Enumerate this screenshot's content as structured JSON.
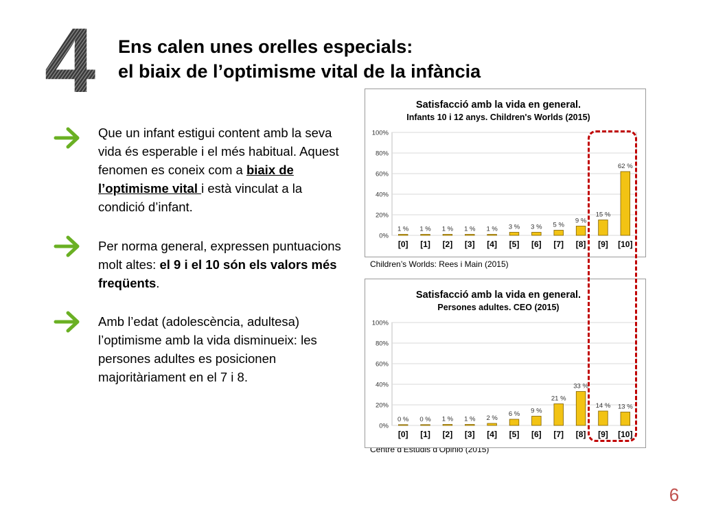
{
  "slide": {
    "number_glyph": "4",
    "title_line1": "Ens calen unes orelles especials:",
    "title_line2": "el biaix de l’optimisme vital de la infància",
    "page_number": "6"
  },
  "bullets": [
    {
      "text_a": "Que un infant estigui content amb la seva vida és esperable i el més habitual. Aquest fenomen es coneix com a ",
      "text_u": "biaix de l’optimisme vital ",
      "text_c": "i està vinculat a la condició d’infant."
    },
    {
      "text_a": "Per norma general, expressen puntuacions molt altes: ",
      "text_b": "el 9 i el 10 són els valors més freqüents",
      "text_c": "."
    },
    {
      "text_a": "Amb l’edat (adolescència, adultesa) l’optimisme amb la vida disminueix: les persones adultes es posicionen majoritàriament en el 7 i 8."
    }
  ],
  "colors": {
    "arrow": "#6ab023",
    "bar": "#f2c314",
    "bar_stroke": "#7f6000",
    "highlight": "#c00000",
    "page_number": "#c0504d"
  },
  "chart_data": [
    {
      "type": "bar",
      "title": "Satisfacció amb la vida en general.",
      "subtitle": "Infants 10 i 12 anys. Children's Worlds (2015)",
      "categories": [
        "[0]",
        "[1]",
        "[2]",
        "[3]",
        "[4]",
        "[5]",
        "[6]",
        "[7]",
        "[8]",
        "[9]",
        "[10]"
      ],
      "values": [
        1,
        1,
        1,
        1,
        1,
        3,
        3,
        5,
        9,
        15,
        62
      ],
      "data_labels": [
        "1 %",
        "1 %",
        "1 %",
        "1 %",
        "1 %",
        "3 %",
        "3 %",
        "5 %",
        "9 %",
        "15 %",
        "62 %"
      ],
      "yticks": [
        "0%",
        "20%",
        "40%",
        "60%",
        "80%",
        "100%"
      ],
      "ylim": [
        0,
        100
      ],
      "grid": true,
      "source": "Children’s Worlds: Rees i Main (2015)"
    },
    {
      "type": "bar",
      "title": "Satisfacció amb la vida en general.",
      "subtitle": "Persones adultes. CEO (2015)",
      "categories": [
        "[0]",
        "[1]",
        "[2]",
        "[3]",
        "[4]",
        "[5]",
        "[6]",
        "[7]",
        "[8]",
        "[9]",
        "[10]"
      ],
      "values": [
        0,
        0,
        1,
        1,
        2,
        6,
        9,
        21,
        33,
        14,
        13
      ],
      "data_labels": [
        "0 %",
        "0 %",
        "1 %",
        "1 %",
        "2 %",
        "6 %",
        "9 %",
        "21 %",
        "33 %",
        "14 %",
        "13 %"
      ],
      "yticks": [
        "0%",
        "20%",
        "40%",
        "60%",
        "80%",
        "100%"
      ],
      "ylim": [
        0,
        100
      ],
      "grid": true,
      "source": "Centre d’Estudis d’Opinió (2015)"
    }
  ]
}
